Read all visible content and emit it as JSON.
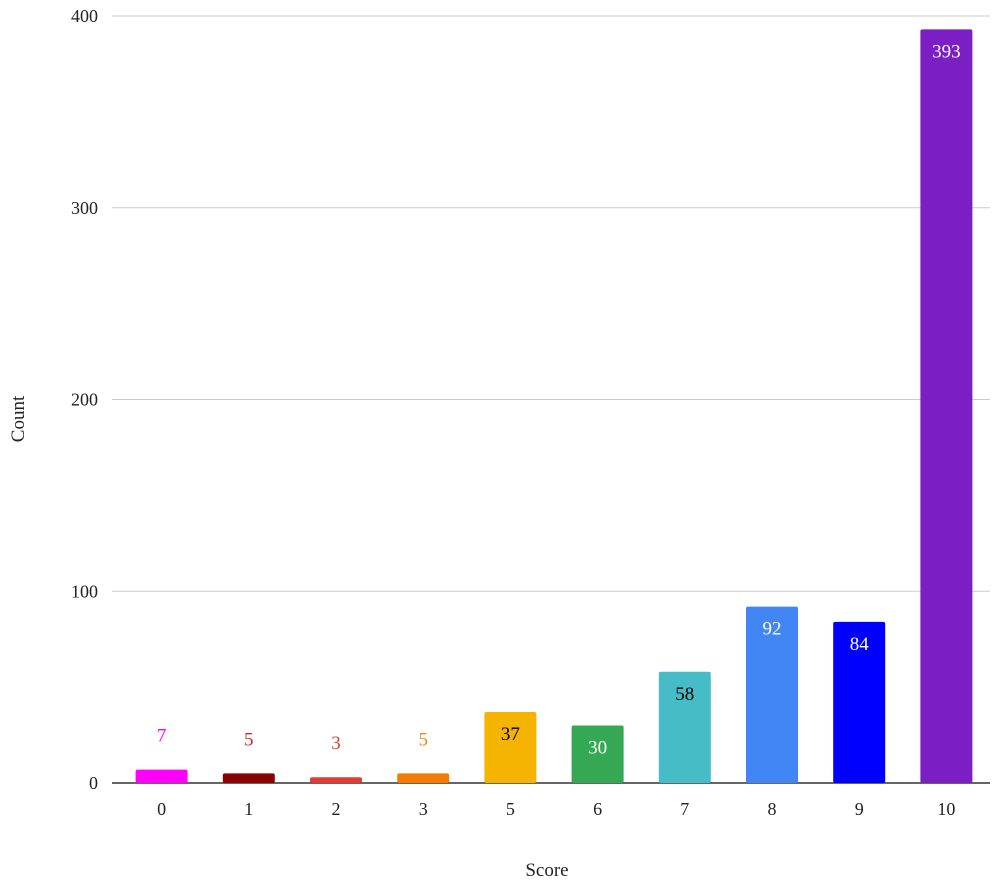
{
  "chart_data": {
    "type": "bar",
    "xlabel": "Score",
    "ylabel": "Count",
    "categories": [
      "0",
      "1",
      "2",
      "3",
      "5",
      "6",
      "7",
      "8",
      "9",
      "10"
    ],
    "values": [
      7,
      5,
      3,
      5,
      37,
      30,
      58,
      92,
      84,
      393
    ],
    "labels": [
      "7",
      "5",
      "3",
      "5",
      "37",
      "30",
      "58",
      "92",
      "84",
      "393"
    ],
    "colors": [
      "#ff00ff",
      "#8b0000",
      "#e53935",
      "#f57c00",
      "#f4b400",
      "#34a853",
      "#46bdc6",
      "#4285f4",
      "#0000ff",
      "#7b1fc5"
    ],
    "label_colors": [
      "#ff00ff",
      "#c62828",
      "#e53935",
      "#ef8a17",
      "#000000",
      "#ffffff",
      "#000000",
      "#ffffff",
      "#ffffff",
      "#ffffff"
    ],
    "label_position": [
      "outside",
      "outside",
      "outside",
      "outside",
      "inside",
      "inside",
      "inside",
      "inside",
      "inside",
      "inside"
    ],
    "yticks": [
      0,
      100,
      200,
      300,
      400
    ],
    "ylim": [
      0,
      400
    ],
    "grid": true,
    "legend": "none"
  }
}
